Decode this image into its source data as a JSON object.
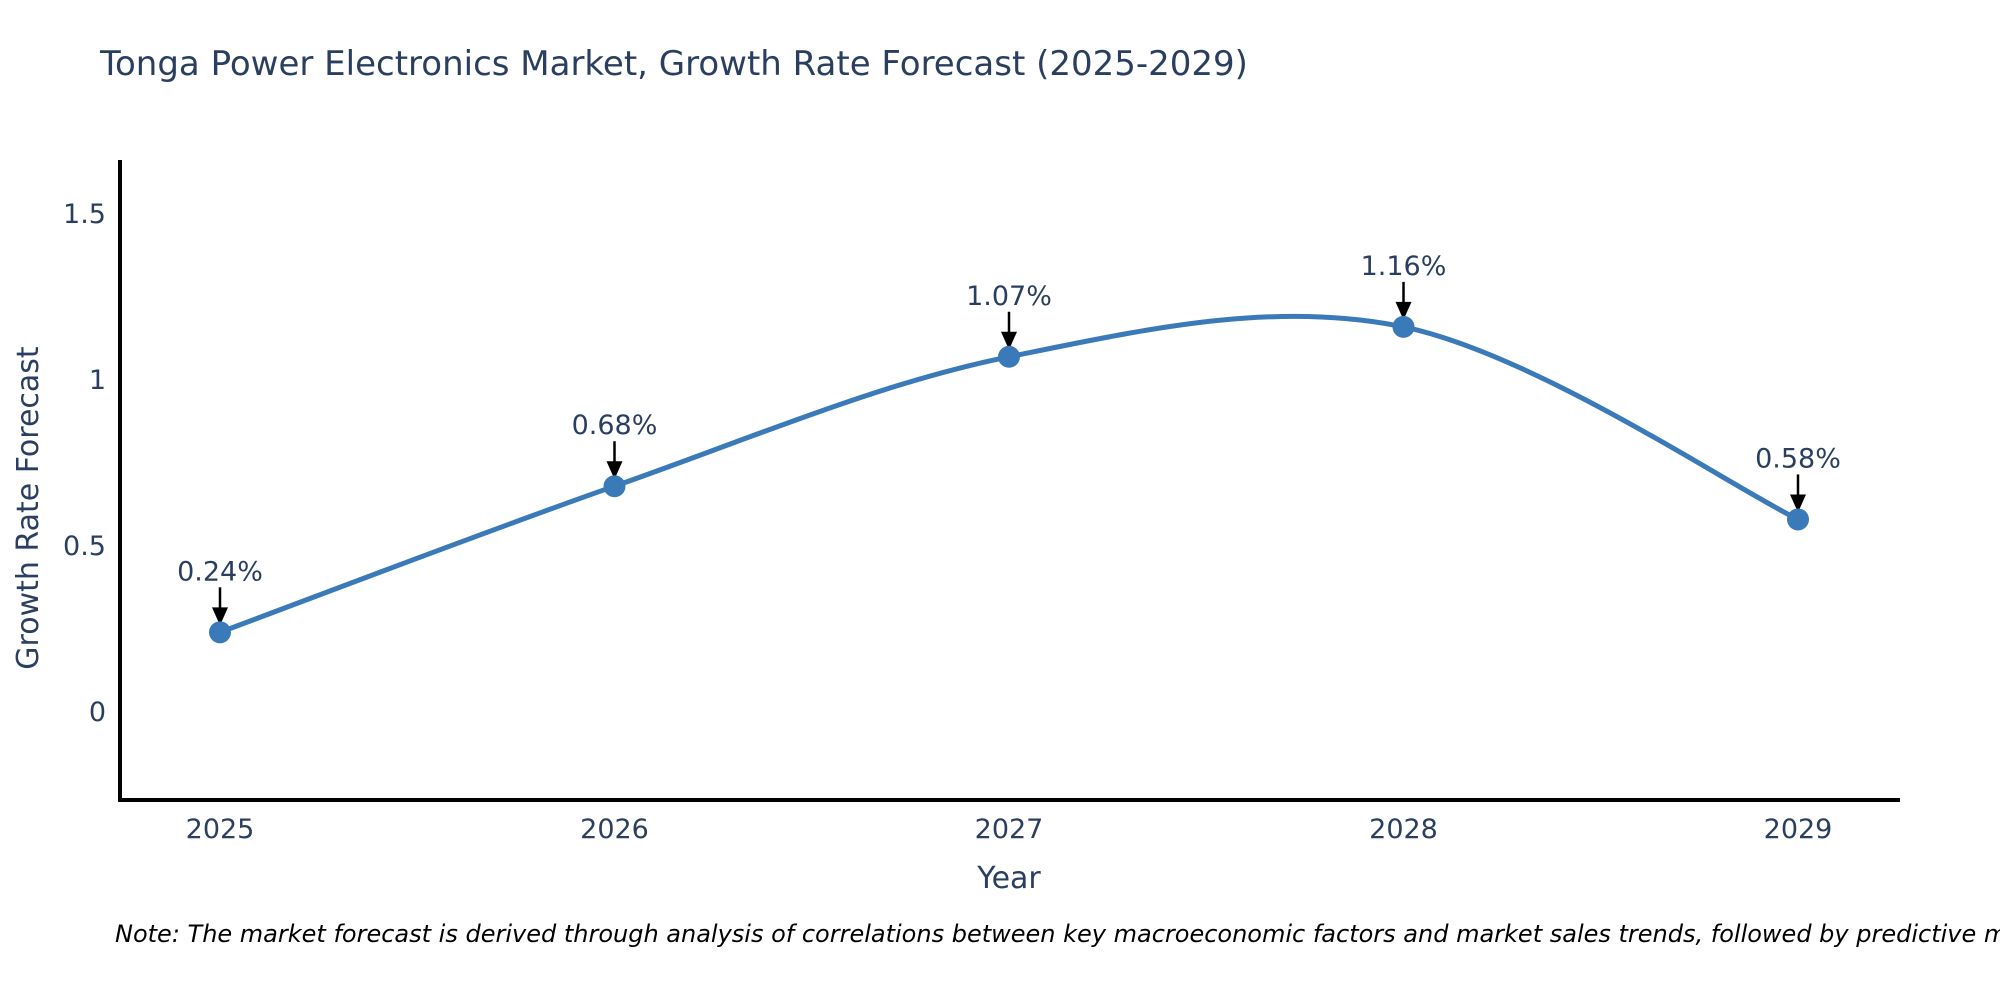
{
  "title": "Tonga Power Electronics Market, Growth Rate Forecast (2025-2029)",
  "note": "Note: The market forecast is derived through analysis of correlations between key macroeconomic factors and market sales trends, followed by predictive modeling to project future sales",
  "chart_data": {
    "type": "line",
    "title": "Tonga Power Electronics Market, Growth Rate Forecast (2025-2029)",
    "x": [
      2025,
      2026,
      2027,
      2028,
      2029
    ],
    "series": [
      {
        "name": "Growth Rate Forecast",
        "values": [
          0.24,
          0.68,
          1.07,
          1.16,
          0.58
        ]
      }
    ],
    "point_labels": [
      "0.24%",
      "0.68%",
      "1.07%",
      "1.16%",
      "0.58%"
    ],
    "xlabel": "Year",
    "ylabel": "Growth Rate Forecast",
    "xtick_labels": [
      "2025",
      "2026",
      "2027",
      "2028",
      "2029"
    ],
    "yticks": [
      0,
      0.5,
      1,
      1.5
    ],
    "ytick_labels": [
      "0",
      "0.5",
      "1",
      "1.5"
    ],
    "ylim": [
      -0.27,
      1.67
    ],
    "grid": false,
    "legend_position": "none",
    "line_shape": "spline",
    "annotation_arrows": true,
    "colors": {
      "line": "#3a7ab8",
      "marker": "#3a7ab8",
      "axis": "#000000",
      "text": "#2a3f5f",
      "note_text": "#000000",
      "background": "#ffffff"
    }
  }
}
